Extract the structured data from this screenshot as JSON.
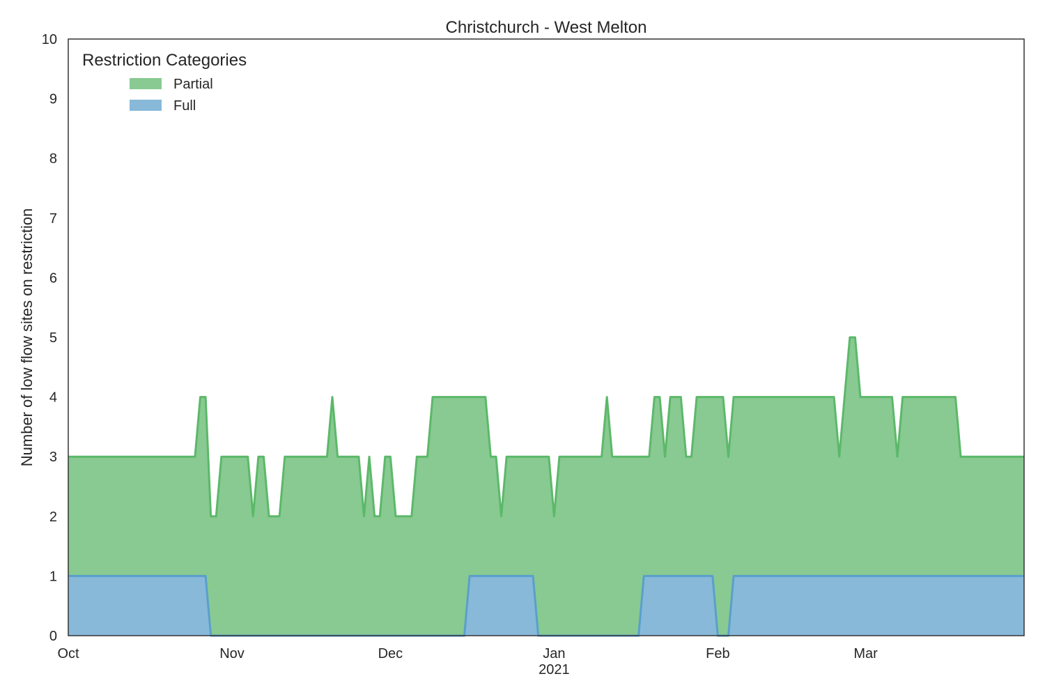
{
  "chart_data": {
    "type": "area",
    "stacked": true,
    "title": "Christchurch - West Melton",
    "xlabel": "",
    "ylabel": "Number of low flow sites on restriction",
    "x_range": [
      "2020-10-01",
      "2021-03-31"
    ],
    "ylim": [
      0,
      10
    ],
    "y_ticks": [
      "0",
      "1",
      "2",
      "3",
      "4",
      "5",
      "6",
      "7",
      "8",
      "9",
      "10"
    ],
    "x_ticks": [
      {
        "date": "2020-10-01",
        "label": "Oct",
        "sublabel": ""
      },
      {
        "date": "2020-11-01",
        "label": "Nov",
        "sublabel": ""
      },
      {
        "date": "2020-12-01",
        "label": "Dec",
        "sublabel": ""
      },
      {
        "date": "2021-01-01",
        "label": "Jan",
        "sublabel": "2021"
      },
      {
        "date": "2021-02-01",
        "label": "Feb",
        "sublabel": ""
      },
      {
        "date": "2021-03-01",
        "label": "Mar",
        "sublabel": ""
      }
    ],
    "grid": false,
    "legend": {
      "title": "Restriction Categories",
      "placement": "top-left",
      "entries": [
        {
          "key": "partial",
          "label": "Partial"
        },
        {
          "key": "full",
          "label": "Full"
        }
      ]
    },
    "colors": {
      "partial_fill": "#88ca91",
      "partial_line": "#5cb86a",
      "full_fill": "#88b9d9",
      "full_line": "#5a9fcc"
    },
    "series": [
      {
        "key": "full",
        "name": "Full",
        "points": [
          [
            "2020-10-01",
            1
          ],
          [
            "2020-10-27",
            1
          ],
          [
            "2020-10-28",
            0
          ],
          [
            "2020-12-15",
            0
          ],
          [
            "2020-12-16",
            1
          ],
          [
            "2020-12-28",
            1
          ],
          [
            "2020-12-29",
            0
          ],
          [
            "2021-01-17",
            0
          ],
          [
            "2021-01-18",
            1
          ],
          [
            "2021-01-31",
            1
          ],
          [
            "2021-02-01",
            0
          ],
          [
            "2021-02-03",
            0
          ],
          [
            "2021-02-04",
            1
          ],
          [
            "2021-03-31",
            1
          ]
        ]
      },
      {
        "key": "total",
        "name": "Partial",
        "points": [
          [
            "2020-10-01",
            3
          ],
          [
            "2020-10-25",
            3
          ],
          [
            "2020-10-26",
            4
          ],
          [
            "2020-10-27",
            4
          ],
          [
            "2020-10-28",
            2
          ],
          [
            "2020-10-29",
            2
          ],
          [
            "2020-10-30",
            3
          ],
          [
            "2020-11-04",
            3
          ],
          [
            "2020-11-05",
            2
          ],
          [
            "2020-11-06",
            3
          ],
          [
            "2020-11-07",
            3
          ],
          [
            "2020-11-08",
            2
          ],
          [
            "2020-11-10",
            2
          ],
          [
            "2020-11-11",
            3
          ],
          [
            "2020-11-19",
            3
          ],
          [
            "2020-11-20",
            4
          ],
          [
            "2020-11-21",
            3
          ],
          [
            "2020-11-25",
            3
          ],
          [
            "2020-11-26",
            2
          ],
          [
            "2020-11-27",
            3
          ],
          [
            "2020-11-28",
            2
          ],
          [
            "2020-11-29",
            2
          ],
          [
            "2020-11-30",
            3
          ],
          [
            "2020-12-01",
            3
          ],
          [
            "2020-12-02",
            2
          ],
          [
            "2020-12-05",
            2
          ],
          [
            "2020-12-06",
            3
          ],
          [
            "2020-12-08",
            3
          ],
          [
            "2020-12-09",
            4
          ],
          [
            "2020-12-19",
            4
          ],
          [
            "2020-12-20",
            3
          ],
          [
            "2020-12-21",
            3
          ],
          [
            "2020-12-22",
            2
          ],
          [
            "2020-12-23",
            3
          ],
          [
            "2020-12-31",
            3
          ],
          [
            "2021-01-01",
            2
          ],
          [
            "2021-01-02",
            3
          ],
          [
            "2021-01-10",
            3
          ],
          [
            "2021-01-11",
            4
          ],
          [
            "2021-01-12",
            3
          ],
          [
            "2021-01-19",
            3
          ],
          [
            "2021-01-20",
            4
          ],
          [
            "2021-01-21",
            4
          ],
          [
            "2021-01-22",
            3
          ],
          [
            "2021-01-23",
            4
          ],
          [
            "2021-01-25",
            4
          ],
          [
            "2021-01-26",
            3
          ],
          [
            "2021-01-27",
            3
          ],
          [
            "2021-01-28",
            4
          ],
          [
            "2021-02-02",
            4
          ],
          [
            "2021-02-03",
            3
          ],
          [
            "2021-02-04",
            4
          ],
          [
            "2021-02-23",
            4
          ],
          [
            "2021-02-24",
            3
          ],
          [
            "2021-02-25",
            4
          ],
          [
            "2021-02-26",
            5
          ],
          [
            "2021-02-27",
            5
          ],
          [
            "2021-02-28",
            4
          ],
          [
            "2021-03-06",
            4
          ],
          [
            "2021-03-07",
            3
          ],
          [
            "2021-03-08",
            4
          ],
          [
            "2021-03-18",
            4
          ],
          [
            "2021-03-19",
            3
          ],
          [
            "2021-03-31",
            3
          ]
        ]
      }
    ]
  }
}
